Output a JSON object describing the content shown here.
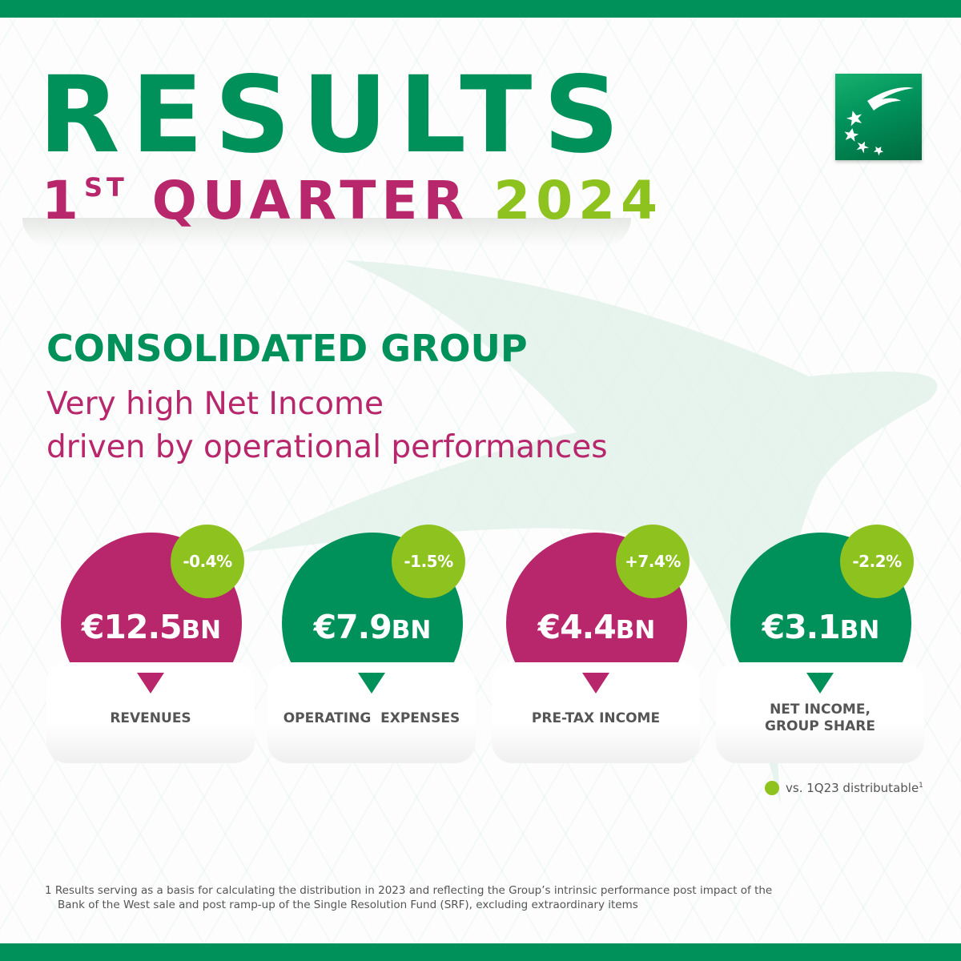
{
  "header": {
    "title": "RESULTS",
    "quarter_number": "1",
    "quarter_suffix": "ST",
    "quarter_word": "QUARTER",
    "year": "2024"
  },
  "logo": {
    "icon": "bnp-stars-bird-logo"
  },
  "section": {
    "title": "CONSOLIDATED GROUP",
    "subtitle_line1": "Very high Net Income",
    "subtitle_line2": "driven by operational performances"
  },
  "kpis": [
    {
      "value": "€12.5",
      "unit": "BN",
      "change": "-0.4%",
      "label_line1": "REVENUES",
      "label_line2": "",
      "color": "#b8266c"
    },
    {
      "value": "€7.9",
      "unit": "BN",
      "change": "-1.5%",
      "label_line1": "OPERATING  EXPENSES",
      "label_line2": "",
      "color": "#00915a"
    },
    {
      "value": "€4.4",
      "unit": "BN",
      "change": "+7.4%",
      "label_line1": "PRE-TAX INCOME",
      "label_line2": "",
      "color": "#b8266c"
    },
    {
      "value": "€3.1",
      "unit": "BN",
      "change": "-2.2%",
      "label_line1": "NET INCOME,",
      "label_line2": "GROUP SHARE",
      "color": "#00915a"
    }
  ],
  "legend": {
    "text": "vs. 1Q23 distributable",
    "superscript": "1",
    "color": "#8ec21f"
  },
  "footnote": {
    "line1": "1 Results serving as a basis for calculating the distribution in 2023 and reflecting the Group’s intrinsic performance post impact of the",
    "line2": "Bank of the West sale and post ramp-up of the Single Resolution Fund (SRF), excluding extraordinary items"
  },
  "colors": {
    "brand_green": "#00915a",
    "magenta": "#b8266c",
    "lime": "#8ec21f"
  }
}
